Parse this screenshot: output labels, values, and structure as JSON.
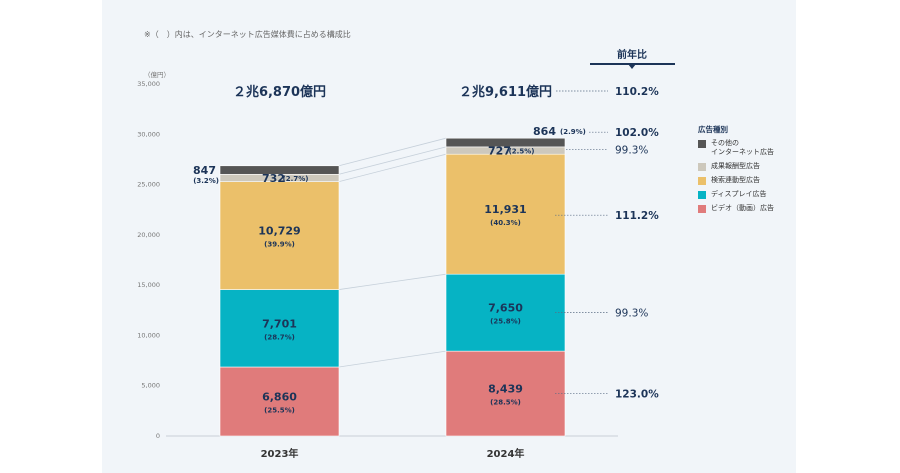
{
  "note": "※（　）内は、インターネット広告媒体費に占める構成比",
  "unit_label": "（億円）",
  "yoy_header": "前年比",
  "legend_title": "広告種別",
  "chart_data": {
    "type": "bar",
    "stacked": true,
    "categories": [
      "2023年",
      "2024年"
    ],
    "totals": [
      "２兆6,870億円",
      "２兆9,611億円"
    ],
    "ylim": [
      0,
      35000
    ],
    "yticks": [
      0,
      5000,
      10000,
      15000,
      20000,
      25000,
      30000,
      35000
    ],
    "ytick_labels": [
      "0",
      "5,000",
      "10,000",
      "15,000",
      "20,000",
      "25,000",
      "30,000",
      "35,000"
    ],
    "series": [
      {
        "name": "ビデオ（動画）広告",
        "color": "#e07b7b",
        "values": [
          6860,
          8439
        ],
        "labels": [
          "6,860",
          "8,439"
        ],
        "shares": [
          "(25.5%)",
          "(28.5%)"
        ],
        "yoy": "123.0%",
        "yoy_bold": true
      },
      {
        "name": "ディスプレイ広告",
        "color": "#06b3c4",
        "values": [
          7701,
          7650
        ],
        "labels": [
          "7,701",
          "7,650"
        ],
        "shares": [
          "(28.7%)",
          "(25.8%)"
        ],
        "yoy": "99.3%",
        "yoy_bold": false
      },
      {
        "name": "検索連動型広告",
        "color": "#ebc06a",
        "values": [
          10729,
          11931
        ],
        "labels": [
          "10,729",
          "11,931"
        ],
        "shares": [
          "(39.9%)",
          "(40.3%)"
        ],
        "yoy": "111.2%",
        "yoy_bold": true
      },
      {
        "name": "成果報酬型広告",
        "color": "#cdc8bc",
        "values": [
          732,
          727
        ],
        "labels": [
          "732",
          "727"
        ],
        "shares": [
          "(2.7%)",
          "(2.5%)"
        ],
        "yoy": "99.3%",
        "yoy_bold": false
      },
      {
        "name": "その他の\nインターネット広告",
        "color": "#555555",
        "values": [
          847,
          864
        ],
        "labels": [
          "847",
          "864"
        ],
        "shares": [
          "(3.2%)",
          "(2.9%)"
        ],
        "yoy": "102.0%",
        "yoy_bold": true
      }
    ],
    "total_yoy": "110.2%",
    "legend_order": [
      4,
      3,
      2,
      1,
      0
    ]
  }
}
